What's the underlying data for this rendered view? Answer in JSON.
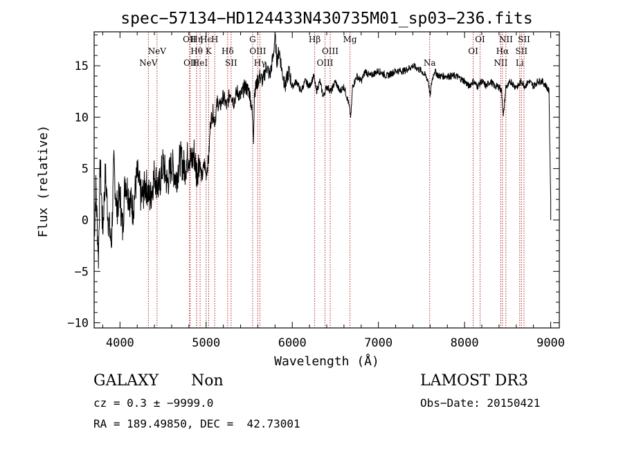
{
  "chart_data": {
    "type": "line",
    "title": "spec−57134−HD124433N430735M01_sp03−236.fits",
    "xlabel": "Wavelength (Å)",
    "ylabel": "Flux (relative)",
    "xlim": [
      3700,
      9100
    ],
    "ylim": [
      -10.5,
      18.3
    ],
    "xticks": [
      4000,
      5000,
      6000,
      7000,
      8000,
      9000
    ],
    "yticks": [
      -10,
      -5,
      0,
      5,
      10,
      15
    ],
    "ytick_labels": [
      "−10",
      "−5",
      "0",
      "5",
      "10",
      "15"
    ],
    "grid": false,
    "colors": {
      "line": "#000000",
      "marker": "#b22222",
      "axis": "#000000"
    },
    "series": [
      {
        "name": "spectrum",
        "x": [
          3700,
          3720,
          3750,
          3770,
          3800,
          3830,
          3860,
          3900,
          3930,
          3960,
          4000,
          4030,
          4060,
          4100,
          4150,
          4200,
          4250,
          4300,
          4350,
          4400,
          4450,
          4500,
          4550,
          4600,
          4650,
          4700,
          4750,
          4800,
          4830,
          4860,
          4890,
          4920,
          4950,
          4980,
          5000,
          5030,
          5050,
          5080,
          5100,
          5130,
          5160,
          5200,
          5240,
          5280,
          5320,
          5360,
          5400,
          5450,
          5500,
          5530,
          5550,
          5560,
          5580,
          5620,
          5660,
          5700,
          5740,
          5780,
          5800,
          5820,
          5850,
          5880,
          5920,
          5960,
          6000,
          6050,
          6100,
          6150,
          6200,
          6250,
          6280,
          6320,
          6360,
          6400,
          6450,
          6500,
          6550,
          6600,
          6650,
          6680,
          6700,
          6750,
          6800,
          6850,
          6900,
          7000,
          7100,
          7200,
          7300,
          7400,
          7500,
          7550,
          7580,
          7600,
          7620,
          7650,
          7700,
          7800,
          7900,
          8000,
          8050,
          8100,
          8150,
          8200,
          8250,
          8300,
          8350,
          8400,
          8430,
          8450,
          8480,
          8500,
          8540,
          8580,
          8620,
          8660,
          8700,
          8750,
          8800,
          8850,
          8900,
          8950,
          8980,
          9000
        ],
        "y": [
          -1.5,
          3.0,
          -3.5,
          5.5,
          -1.0,
          4.5,
          0.5,
          -2.5,
          5.5,
          1.0,
          2.5,
          -1.0,
          4.0,
          2.5,
          1.0,
          4.5,
          2.0,
          3.5,
          2.0,
          4.5,
          3.0,
          5.5,
          3.5,
          5.5,
          4.0,
          6.0,
          5.0,
          6.5,
          5.5,
          6.5,
          4.5,
          6.0,
          4.0,
          5.5,
          4.5,
          6.0,
          9.5,
          10.5,
          9.5,
          11.5,
          11.0,
          12.0,
          11.0,
          12.5,
          11.5,
          12.5,
          12.0,
          13.0,
          12.5,
          11.0,
          8.0,
          12.5,
          13.0,
          14.0,
          13.5,
          15.0,
          14.0,
          16.0,
          18.0,
          15.5,
          16.5,
          14.5,
          13.0,
          14.5,
          13.0,
          13.5,
          12.5,
          13.5,
          13.0,
          14.0,
          12.5,
          13.5,
          12.0,
          13.0,
          12.5,
          13.5,
          12.5,
          13.0,
          11.5,
          10.0,
          13.0,
          14.0,
          13.5,
          14.5,
          14.0,
          14.5,
          14.0,
          14.5,
          14.5,
          15.0,
          14.5,
          14.0,
          13.5,
          12.0,
          13.5,
          14.5,
          14.0,
          14.0,
          14.0,
          13.5,
          13.0,
          13.5,
          13.0,
          13.5,
          13.0,
          13.5,
          13.0,
          13.0,
          12.5,
          10.0,
          13.0,
          13.0,
          13.5,
          13.0,
          13.0,
          13.5,
          13.0,
          13.5,
          13.0,
          13.5,
          13.5,
          13.0,
          12.5,
          2.0
        ]
      }
    ],
    "line_markers": [
      {
        "x": 4330,
        "label": "NeV",
        "row": 3
      },
      {
        "x": 4430,
        "label": "NeV",
        "row": 2
      },
      {
        "x": 4807,
        "label": "OII",
        "row": 1
      },
      {
        "x": 4815,
        "label": "OII",
        "row": 3
      },
      {
        "x": 4890,
        "label": "Hη",
        "row": 1
      },
      {
        "x": 4890,
        "label": "Hθ",
        "row": 2
      },
      {
        "x": 4930,
        "label": "HeI",
        "row": 3
      },
      {
        "x": 5000,
        "label": "Hϵ",
        "row": 1
      },
      {
        "x": 5030,
        "label": "K",
        "row": 2
      },
      {
        "x": 5100,
        "label": "H",
        "row": 1
      },
      {
        "x": 5250,
        "label": "Hδ",
        "row": 2
      },
      {
        "x": 5290,
        "label": "SII",
        "row": 3
      },
      {
        "x": 5540,
        "label": "G",
        "row": 1
      },
      {
        "x": 5600,
        "label": "OIII",
        "row": 2
      },
      {
        "x": 5625,
        "label": "Hγ",
        "row": 3
      },
      {
        "x": 6260,
        "label": "Hβ",
        "row": 1
      },
      {
        "x": 6380,
        "label": "OIII",
        "row": 3
      },
      {
        "x": 6440,
        "label": "OIII",
        "row": 2
      },
      {
        "x": 6670,
        "label": "Mg",
        "row": 1
      },
      {
        "x": 7595,
        "label": "Na",
        "row": 3
      },
      {
        "x": 8100,
        "label": "OI",
        "row": 2
      },
      {
        "x": 8180,
        "label": "OI",
        "row": 1
      },
      {
        "x": 8420,
        "label": "NII",
        "row": 3
      },
      {
        "x": 8440,
        "label": "Hα",
        "row": 2
      },
      {
        "x": 8480,
        "label": "NII",
        "row": 1
      },
      {
        "x": 8640,
        "label": "Li",
        "row": 3
      },
      {
        "x": 8660,
        "label": "SII",
        "row": 2
      },
      {
        "x": 8690,
        "label": "SII",
        "row": 1
      }
    ]
  },
  "info": {
    "class": "GALAXY",
    "subclass": "Non",
    "survey": "LAMOST DR3",
    "cz": "cz = 0.3 ± −9999.0",
    "obs_date": "Obs−Date: 20150421",
    "radec": "RA = 189.49850, DEC =  42.73001"
  }
}
